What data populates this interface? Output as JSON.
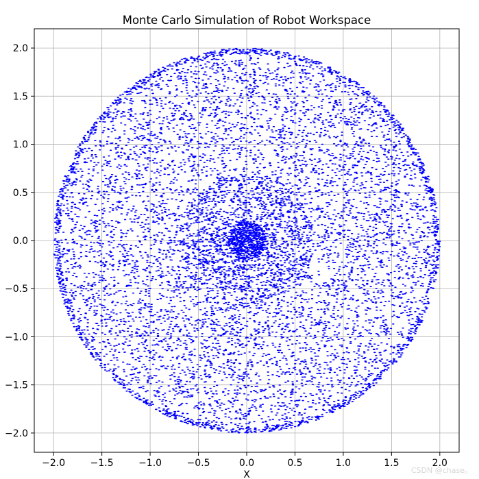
{
  "chart_data": {
    "type": "scatter",
    "title": "Monte Carlo Simulation of Robot Workspace",
    "xlabel": "X",
    "ylabel": "",
    "xlim": [
      -2.2,
      2.2
    ],
    "ylim": [
      -2.2,
      2.2
    ],
    "xticks": [
      -2.0,
      -1.5,
      -1.0,
      -0.5,
      0.0,
      0.5,
      1.0,
      1.5,
      2.0
    ],
    "yticks": [
      -2.0,
      -1.5,
      -1.0,
      -0.5,
      0.0,
      0.5,
      1.0,
      1.5,
      2.0
    ],
    "xtick_labels": [
      "−2.0",
      "−1.5",
      "−1.0",
      "−0.5",
      "0.0",
      "0.5",
      "1.0",
      "1.5",
      "2.0"
    ],
    "ytick_labels": [
      "−2.0",
      "−1.5",
      "−1.0",
      "−0.5",
      "0.0",
      "0.5",
      "1.0",
      "1.5",
      "2.0"
    ],
    "grid": true,
    "point_color": "#0000ff",
    "point_count": 10000,
    "workspace": {
      "shape": "disk",
      "center": [
        0.0,
        0.0
      ],
      "radius": 2.0,
      "distribution": "dense cluster near origin, roughly uniform annulus, denser rim near radius 2.0"
    }
  },
  "watermark": "CSDN @chase。"
}
